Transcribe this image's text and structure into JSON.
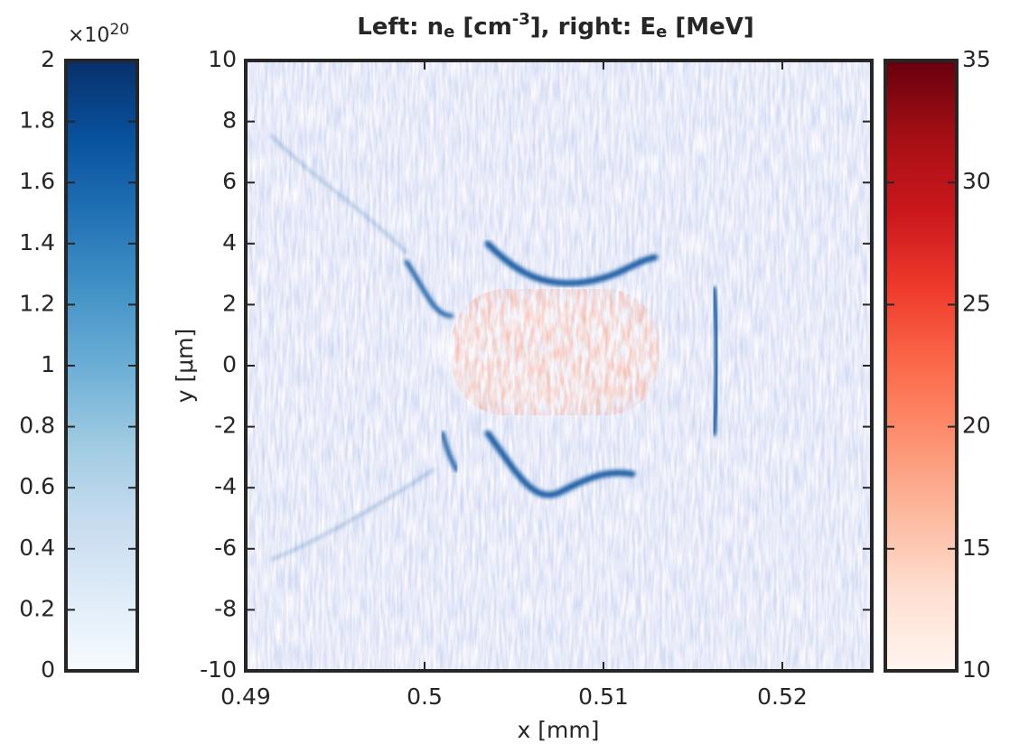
{
  "chart_data": {
    "type": "heatmap",
    "title_parts": [
      {
        "text": "Left: n",
        "style": "normal"
      },
      {
        "text": "e",
        "style": "sub"
      },
      {
        "text": " [cm",
        "style": "normal"
      },
      {
        "text": "-3",
        "style": "sup"
      },
      {
        "text": "], right: E",
        "style": "normal"
      },
      {
        "text": "e",
        "style": "sub"
      },
      {
        "text": " [MeV]",
        "style": "normal"
      }
    ],
    "xlabel": "x [mm]",
    "ylabel": "y [μm]",
    "xlim": [
      0.49,
      0.525
    ],
    "xticks": [
      0.49,
      0.5,
      0.51,
      0.52
    ],
    "ylim": [
      -10,
      10
    ],
    "yticks": [
      -10,
      -8,
      -6,
      -4,
      -2,
      0,
      2,
      4,
      6,
      8,
      10
    ],
    "colorbars": [
      {
        "side": "left",
        "colormap": [
          "#f7fbff",
          "#deebf7",
          "#c6dbef",
          "#9ecae1",
          "#6baed6",
          "#4292c6",
          "#2171b5",
          "#08519c",
          "#08306b"
        ],
        "clim": [
          0,
          2e+20
        ],
        "exponent_base": "×10",
        "exponent_power": "20",
        "ticks": [
          {
            "value": 0,
            "label": "0"
          },
          {
            "value": 2e+19,
            "label": "0.2"
          },
          {
            "value": 4e+19,
            "label": "0.4"
          },
          {
            "value": 6e+19,
            "label": "0.6"
          },
          {
            "value": 8e+19,
            "label": "0.8"
          },
          {
            "value": 1e+20,
            "label": "1"
          },
          {
            "value": 1.2e+20,
            "label": "1.2"
          },
          {
            "value": 1.4e+20,
            "label": "1.4"
          },
          {
            "value": 1.6e+20,
            "label": "1.6"
          },
          {
            "value": 1.8e+20,
            "label": "1.8"
          },
          {
            "value": 2e+20,
            "label": "2"
          }
        ]
      },
      {
        "side": "right",
        "colormap": [
          "#fff5f0",
          "#fee0d2",
          "#fcbba1",
          "#fc9272",
          "#fb6a4a",
          "#ef3b2c",
          "#cb181d",
          "#a50f15",
          "#67000d"
        ],
        "clim": [
          10,
          35
        ],
        "ticks": [
          10,
          15,
          20,
          25,
          30,
          35
        ]
      }
    ]
  }
}
